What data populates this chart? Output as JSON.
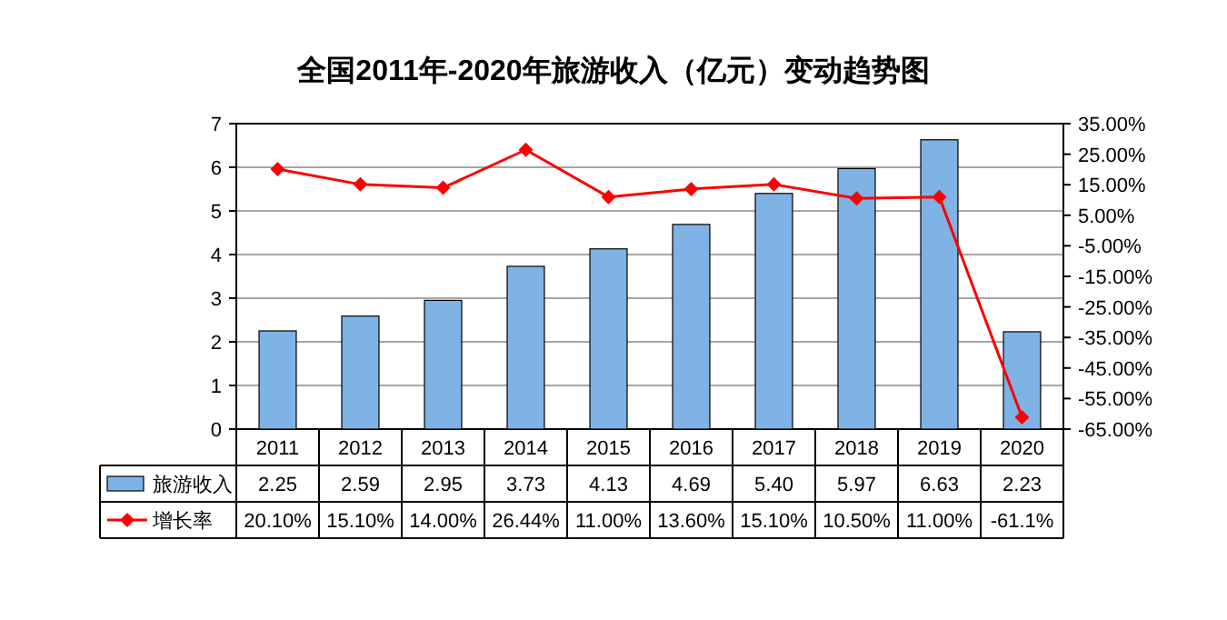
{
  "chart_data": {
    "type": "bar",
    "title": "全国2011年-2020年旅游收入（亿元）变动趋势图",
    "categories": [
      "2011",
      "2012",
      "2013",
      "2014",
      "2015",
      "2016",
      "2017",
      "2018",
      "2019",
      "2020"
    ],
    "series": [
      {
        "name": "旅游收入",
        "color": "#7fb2e5",
        "values": [
          2.25,
          2.59,
          2.95,
          3.73,
          4.13,
          4.69,
          5.4,
          5.97,
          6.63,
          2.23
        ],
        "value_labels": [
          "2.25",
          "2.59",
          "2.95",
          "3.73",
          "4.13",
          "4.69",
          "5.40",
          "5.97",
          "6.63",
          "2.23"
        ]
      },
      {
        "name": "增长率",
        "type": "line",
        "axis": "y2",
        "color": "#ff0000",
        "marker": "diamond",
        "values": [
          20.1,
          15.1,
          14.0,
          26.44,
          11.0,
          13.6,
          15.1,
          10.5,
          11.0,
          -61.1
        ],
        "value_labels": [
          "20.10%",
          "15.10%",
          "14.00%",
          "26.44%",
          "11.00%",
          "13.60%",
          "15.10%",
          "10.50%",
          "11.00%",
          "-61.1%"
        ]
      }
    ],
    "ylim": [
      0,
      7
    ],
    "yticks": [
      0,
      1,
      2,
      3,
      4,
      5,
      6,
      7
    ],
    "y2lim": [
      -65,
      35
    ],
    "y2ticks": [
      {
        "value": 35,
        "label": "35.00%"
      },
      {
        "value": 25,
        "label": "25.00%"
      },
      {
        "value": 15,
        "label": "15.00%"
      },
      {
        "value": 5,
        "label": "5.00%"
      },
      {
        "value": -5,
        "label": "-5.00%"
      },
      {
        "value": -15,
        "label": "-15.00%"
      },
      {
        "value": -25,
        "label": "-25.00%"
      },
      {
        "value": -35,
        "label": "-35.00%"
      },
      {
        "value": -45,
        "label": "-45.00%"
      },
      {
        "value": -55,
        "label": "-55.00%"
      },
      {
        "value": -65,
        "label": "-65.00%"
      }
    ],
    "grid": "y",
    "legend": "bottom"
  }
}
